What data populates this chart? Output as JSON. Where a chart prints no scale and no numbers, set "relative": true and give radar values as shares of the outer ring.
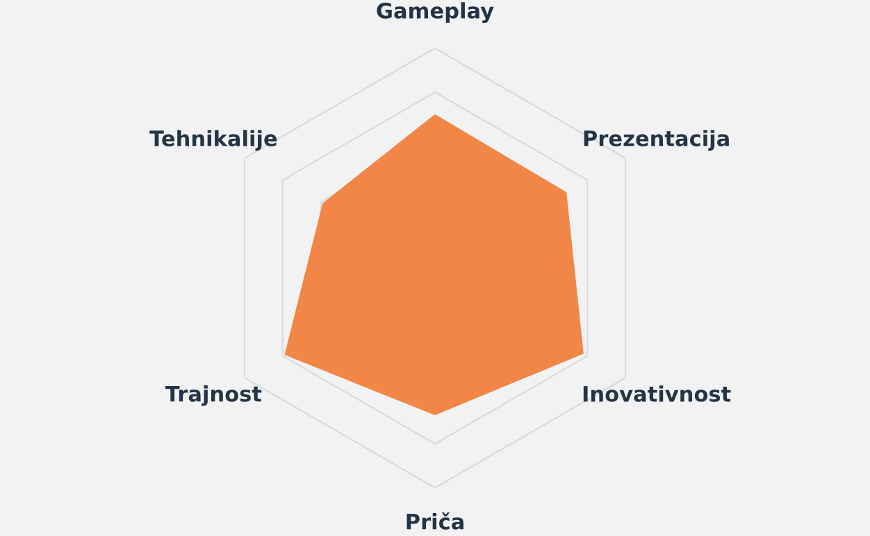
{
  "chart_data": {
    "type": "radar",
    "relative": true,
    "grid": true,
    "categories": [
      "Gameplay",
      "Prezentacija",
      "Inovativnost",
      "Priča",
      "Trajnost",
      "Tehnikalije"
    ],
    "series": [
      {
        "color": "#f0803c",
        "values": [
          0.7,
          0.69,
          0.78,
          0.67,
          0.79,
          0.59
        ]
      }
    ]
  }
}
